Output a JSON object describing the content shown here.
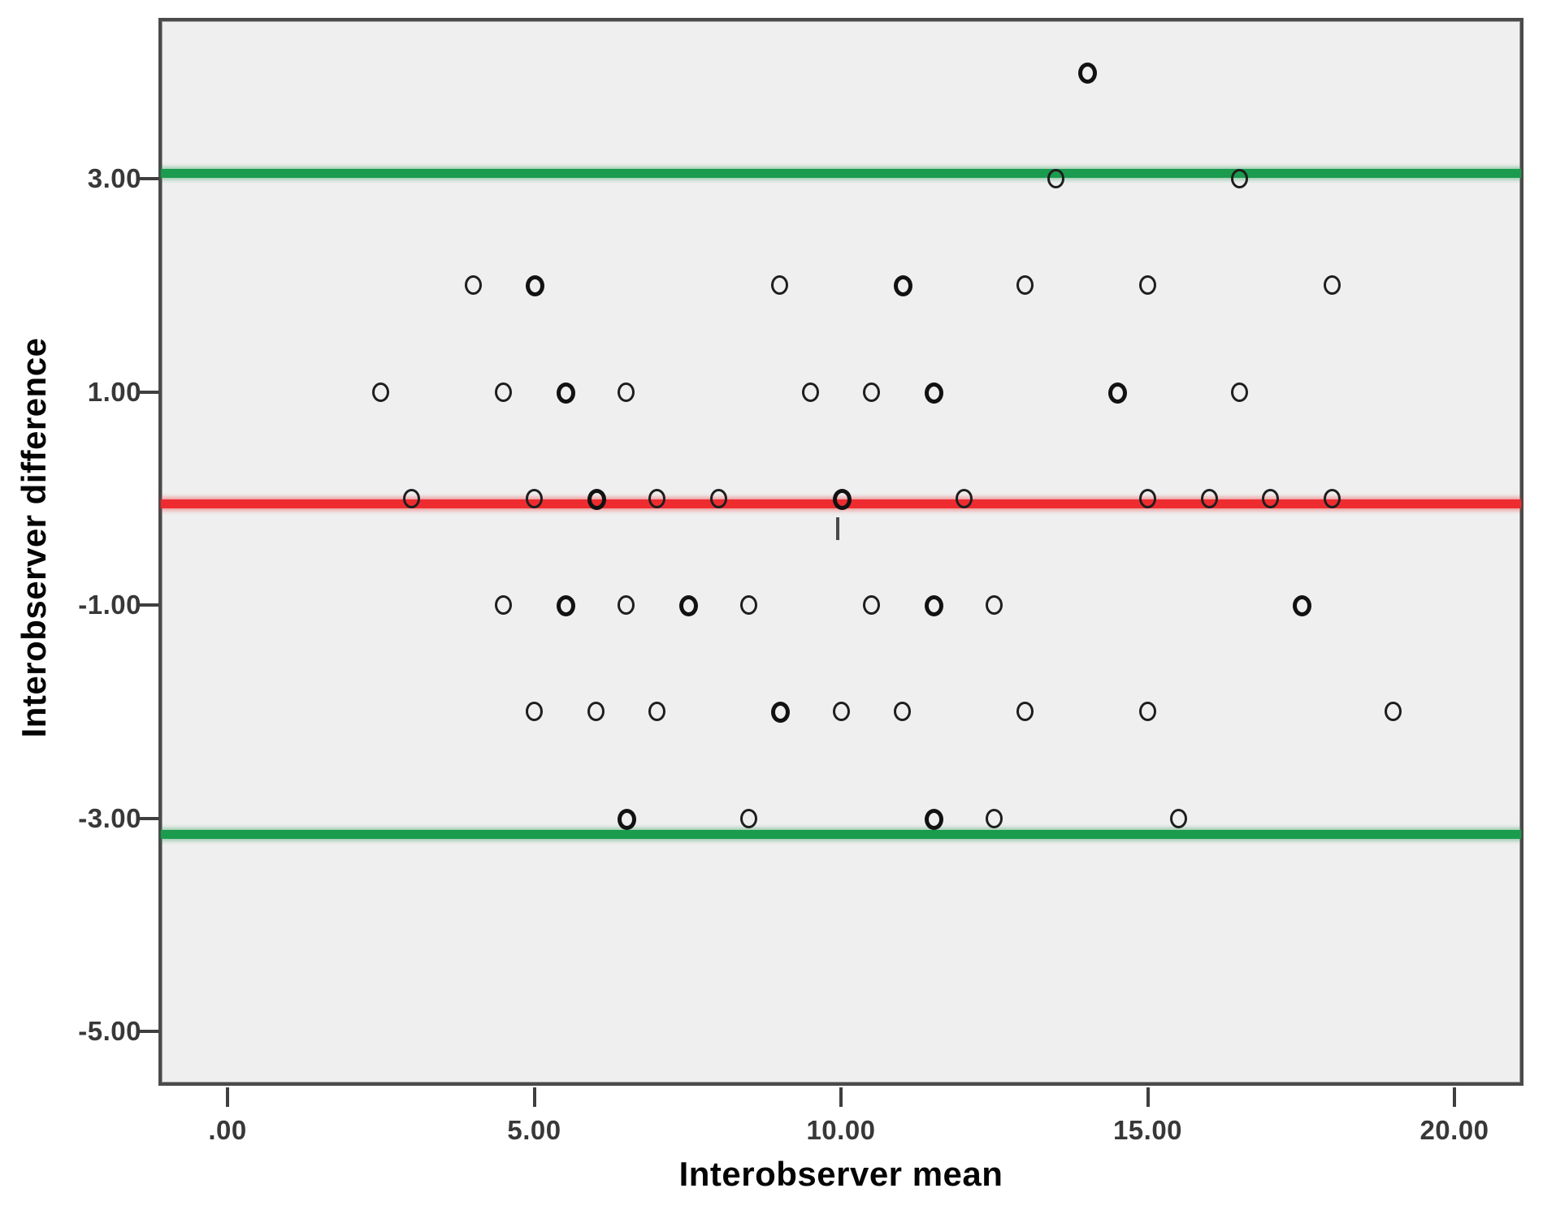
{
  "chart_data": {
    "type": "scatter",
    "title": "",
    "xlabel": "Interobserver mean",
    "ylabel": "Interobserver difference",
    "xlim": [
      -1.1,
      21.1
    ],
    "ylim": [
      -5.5,
      4.5
    ],
    "grid": false,
    "legend": null,
    "x_axis": {
      "tick_labels": [
        ".00",
        "5.00",
        "10.00",
        "15.00",
        "20.00"
      ],
      "tick_values": [
        0,
        5,
        10,
        15,
        20
      ]
    },
    "y_axis": {
      "tick_labels": [
        "3.00",
        "1.00",
        "-1.00",
        "-3.00",
        "-5.00"
      ],
      "tick_values": [
        3,
        1,
        -1,
        -3,
        -5
      ]
    },
    "reference_lines": [
      {
        "role": "upper-limit-of-agreement",
        "y": 3.05,
        "color": "#1b9b4e"
      },
      {
        "role": "mean-difference",
        "y": -0.05,
        "color": "#ee2c30"
      },
      {
        "role": "lower-limit-of-agreement",
        "y": -3.15,
        "color": "#1b9b4e"
      }
    ],
    "marker_style": {
      "shape": "open-circle",
      "stroke": "#1e1e1e"
    },
    "points": [
      {
        "x": 14,
        "y": 4,
        "bold": true
      },
      {
        "x": 13.5,
        "y": 3,
        "bold": false
      },
      {
        "x": 16.5,
        "y": 3,
        "bold": false
      },
      {
        "x": 4,
        "y": 2,
        "bold": false
      },
      {
        "x": 5,
        "y": 2,
        "bold": true
      },
      {
        "x": 9,
        "y": 2,
        "bold": false
      },
      {
        "x": 11,
        "y": 2,
        "bold": true
      },
      {
        "x": 13,
        "y": 2,
        "bold": false
      },
      {
        "x": 15,
        "y": 2,
        "bold": false
      },
      {
        "x": 18,
        "y": 2,
        "bold": false
      },
      {
        "x": 2.5,
        "y": 1,
        "bold": false
      },
      {
        "x": 4.5,
        "y": 1,
        "bold": false
      },
      {
        "x": 5.5,
        "y": 1,
        "bold": true
      },
      {
        "x": 6.5,
        "y": 1,
        "bold": false
      },
      {
        "x": 9.5,
        "y": 1,
        "bold": false
      },
      {
        "x": 10.5,
        "y": 1,
        "bold": false
      },
      {
        "x": 11.5,
        "y": 1,
        "bold": true
      },
      {
        "x": 14.5,
        "y": 1,
        "bold": true
      },
      {
        "x": 16.5,
        "y": 1,
        "bold": false
      },
      {
        "x": 3,
        "y": 0,
        "bold": false
      },
      {
        "x": 5,
        "y": 0,
        "bold": false
      },
      {
        "x": 6,
        "y": 0,
        "bold": true
      },
      {
        "x": 7,
        "y": 0,
        "bold": false
      },
      {
        "x": 8,
        "y": 0,
        "bold": false
      },
      {
        "x": 10,
        "y": 0,
        "bold": true
      },
      {
        "x": 12,
        "y": 0,
        "bold": false
      },
      {
        "x": 15,
        "y": 0,
        "bold": false
      },
      {
        "x": 16,
        "y": 0,
        "bold": false
      },
      {
        "x": 17,
        "y": 0,
        "bold": false
      },
      {
        "x": 18,
        "y": 0,
        "bold": false
      },
      {
        "x": 4.5,
        "y": -1,
        "bold": false
      },
      {
        "x": 5.5,
        "y": -1,
        "bold": true
      },
      {
        "x": 6.5,
        "y": -1,
        "bold": false
      },
      {
        "x": 7.5,
        "y": -1,
        "bold": true
      },
      {
        "x": 8.5,
        "y": -1,
        "bold": false
      },
      {
        "x": 10.5,
        "y": -1,
        "bold": false
      },
      {
        "x": 11.5,
        "y": -1,
        "bold": true
      },
      {
        "x": 12.5,
        "y": -1,
        "bold": false
      },
      {
        "x": 17.5,
        "y": -1,
        "bold": true
      },
      {
        "x": 5,
        "y": -2,
        "bold": false
      },
      {
        "x": 6,
        "y": -2,
        "bold": false
      },
      {
        "x": 7,
        "y": -2,
        "bold": false
      },
      {
        "x": 9,
        "y": -2,
        "bold": true
      },
      {
        "x": 10,
        "y": -2,
        "bold": false
      },
      {
        "x": 11,
        "y": -2,
        "bold": false
      },
      {
        "x": 13,
        "y": -2,
        "bold": false
      },
      {
        "x": 15,
        "y": -2,
        "bold": false
      },
      {
        "x": 19,
        "y": -2,
        "bold": false
      },
      {
        "x": 6.5,
        "y": -3,
        "bold": true
      },
      {
        "x": 8.5,
        "y": -3,
        "bold": false
      },
      {
        "x": 11.5,
        "y": -3,
        "bold": true
      },
      {
        "x": 12.5,
        "y": -3,
        "bold": false
      },
      {
        "x": 15.5,
        "y": -3,
        "bold": false
      }
    ],
    "artifact_dash": {
      "x": 9.95,
      "y_from": -0.18,
      "y_to": -0.39
    },
    "colors": {
      "plot_background": "#efefef",
      "outer_background": "#ffffff",
      "axis_border": "#4a4a4a",
      "tick_text": "#383838",
      "title_text": "#050505",
      "loa_line": "#1b9b4e",
      "mean_line": "#ee2c30",
      "marker_stroke": "#1e1e1e"
    }
  }
}
